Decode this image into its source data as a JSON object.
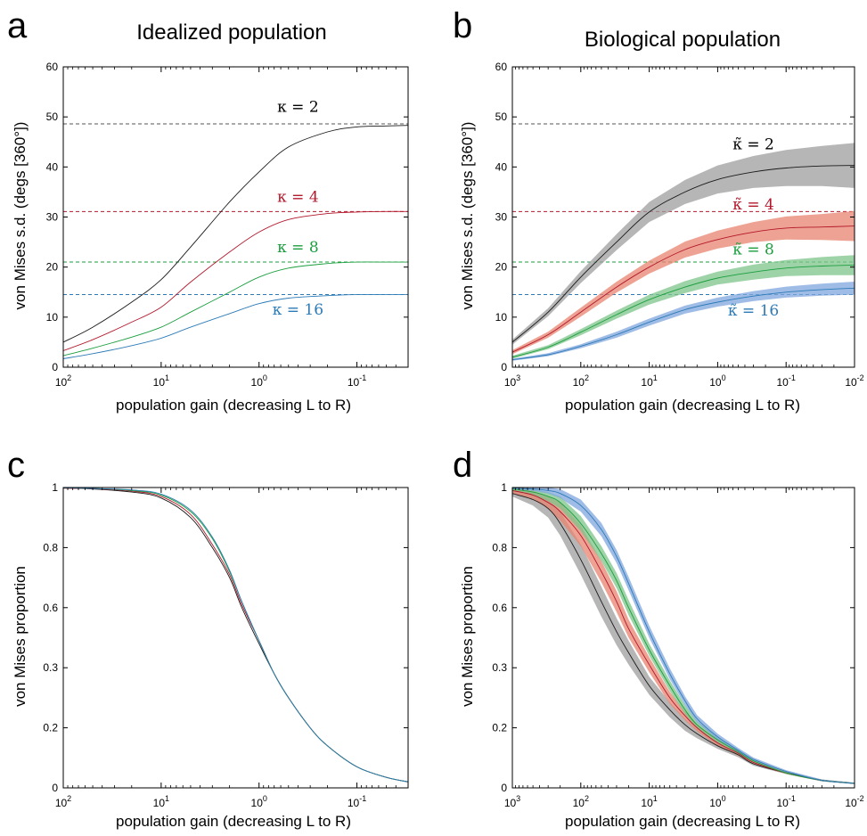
{
  "chart_data": [
    {
      "id": "a",
      "panel_label": "a",
      "title": "Idealized population",
      "type": "line",
      "xlabel": "population gain (decreasing L to R)",
      "ylabel": "von Mises s.d. (degs [360°])",
      "x_scale": "log-reversed",
      "xlim": [
        100,
        0.03
      ],
      "x_ticks": [
        {
          "v": 100,
          "b": "10",
          "e": "2"
        },
        {
          "v": 10,
          "b": "10",
          "e": "1"
        },
        {
          "v": 1,
          "b": "10",
          "e": "0"
        },
        {
          "v": 0.1,
          "b": "10",
          "e": "-1"
        }
      ],
      "ylim": [
        0,
        60
      ],
      "y_ticks": [
        0,
        10,
        20,
        30,
        40,
        50,
        60
      ],
      "grid": false,
      "x": [
        100,
        50,
        20,
        10,
        5,
        2,
        1,
        0.5,
        0.2,
        0.1,
        0.05,
        0.03
      ],
      "series": [
        {
          "color": "#1a1a1a",
          "values": [
            5.0,
            8.0,
            13.0,
            17.5,
            24.0,
            33.0,
            39.0,
            44.0,
            47.0,
            48.0,
            48.2,
            48.3
          ]
        },
        {
          "color": "#b2182b",
          "values": [
            3.3,
            5.5,
            9.0,
            12.0,
            17.0,
            23.0,
            27.0,
            29.5,
            30.7,
            31.0,
            31.1,
            31.1
          ]
        },
        {
          "color": "#1b9e3e",
          "values": [
            2.3,
            3.8,
            6.0,
            8.0,
            11.0,
            15.0,
            18.0,
            19.8,
            20.7,
            21.0,
            21.0,
            21.0
          ]
        },
        {
          "color": "#2c7bb6",
          "values": [
            1.7,
            2.7,
            4.3,
            5.8,
            8.0,
            10.7,
            12.7,
            13.8,
            14.3,
            14.5,
            14.5,
            14.5
          ]
        }
      ],
      "reference_lines": [
        {
          "y": 48.6,
          "color": "#555555"
        },
        {
          "y": 31.1,
          "color": "#b2182b"
        },
        {
          "y": 21.0,
          "color": "#1b9e3e"
        },
        {
          "y": 14.5,
          "color": "#2c7bb6"
        }
      ],
      "annotations": [
        {
          "text": "κ = 2",
          "x": 0.4,
          "y": 51,
          "color": "#000000"
        },
        {
          "text": "κ = 4",
          "x": 0.4,
          "y": 33,
          "color": "#b2182b"
        },
        {
          "text": "κ = 8",
          "x": 0.4,
          "y": 23,
          "color": "#1b9e3e"
        },
        {
          "text": "κ = 16",
          "x": 0.4,
          "y": 10.5,
          "color": "#2c7bb6"
        }
      ]
    },
    {
      "id": "b",
      "panel_label": "b",
      "title": "Biological population",
      "type": "line",
      "xlabel": "population gain (decreasing L to R)",
      "ylabel": "von Mises s.d. (degs [360°])",
      "x_scale": "log-reversed",
      "xlim": [
        1000,
        0.01
      ],
      "x_ticks": [
        {
          "v": 1000,
          "b": "10",
          "e": "3"
        },
        {
          "v": 100,
          "b": "10",
          "e": "2"
        },
        {
          "v": 10,
          "b": "10",
          "e": "1"
        },
        {
          "v": 1,
          "b": "10",
          "e": "0"
        },
        {
          "v": 0.1,
          "b": "10",
          "e": "-1"
        },
        {
          "v": 0.01,
          "b": "10",
          "e": "-2"
        }
      ],
      "ylim": [
        0,
        60
      ],
      "y_ticks": [
        0,
        10,
        20,
        30,
        40,
        50,
        60
      ],
      "grid": false,
      "x": [
        1000,
        300,
        100,
        30,
        10,
        3,
        1,
        0.3,
        0.1,
        0.03,
        0.01
      ],
      "series": [
        {
          "color": "#1a1a1a",
          "band_color": "#9e9e9e",
          "values": [
            5.0,
            11.0,
            18.0,
            25.0,
            31.0,
            35.0,
            37.5,
            39.0,
            39.8,
            40.2,
            40.3
          ],
          "band": [
            0.5,
            0.8,
            1.2,
            1.6,
            2.0,
            2.4,
            2.8,
            3.2,
            3.6,
            4.0,
            4.5
          ]
        },
        {
          "color": "#b2182b",
          "band_color": "#e8836f",
          "values": [
            3.0,
            6.5,
            11.0,
            16.0,
            20.0,
            23.5,
            25.5,
            27.0,
            27.8,
            28.0,
            28.2
          ],
          "band": [
            0.4,
            0.6,
            0.9,
            1.1,
            1.3,
            1.6,
            1.8,
            2.0,
            2.3,
            2.6,
            3.0
          ]
        },
        {
          "color": "#1b9e3e",
          "band_color": "#7cc48a",
          "values": [
            2.0,
            4.0,
            7.0,
            10.5,
            13.5,
            16.0,
            17.8,
            19.0,
            19.8,
            20.2,
            20.4
          ],
          "band": [
            0.3,
            0.4,
            0.6,
            0.8,
            1.0,
            1.2,
            1.3,
            1.5,
            1.6,
            1.8,
            2.0
          ]
        },
        {
          "color": "#2c7bb6",
          "band_color": "#7fa6dd",
          "values": [
            1.5,
            2.5,
            4.2,
            6.5,
            9.0,
            11.5,
            13.0,
            14.2,
            15.0,
            15.5,
            15.8
          ],
          "band": [
            0.2,
            0.3,
            0.4,
            0.6,
            0.7,
            0.8,
            0.9,
            1.0,
            1.1,
            1.2,
            1.3
          ]
        }
      ],
      "reference_lines": [
        {
          "y": 48.6,
          "color": "#555555"
        },
        {
          "y": 31.1,
          "color": "#b2182b"
        },
        {
          "y": 21.0,
          "color": "#1b9e3e"
        },
        {
          "y": 14.5,
          "color": "#2c7bb6"
        }
      ],
      "annotations": [
        {
          "text": "κ̃ = 2",
          "x": 0.3,
          "y": 43.5,
          "color": "#000000"
        },
        {
          "text": "κ̃ = 4",
          "x": 0.3,
          "y": 31.5,
          "color": "#b2182b"
        },
        {
          "text": "κ̃ = 8",
          "x": 0.3,
          "y": 22.5,
          "color": "#1b9e3e"
        },
        {
          "text": "κ̃ = 16",
          "x": 0.3,
          "y": 10.3,
          "color": "#2c7bb6"
        }
      ]
    },
    {
      "id": "c",
      "panel_label": "c",
      "type": "line",
      "xlabel": "population gain (decreasing L to R)",
      "ylabel": "von Mises proportion",
      "x_scale": "log-reversed",
      "xlim": [
        100,
        0.03
      ],
      "x_ticks": [
        {
          "v": 100,
          "b": "10",
          "e": "2"
        },
        {
          "v": 10,
          "b": "10",
          "e": "1"
        },
        {
          "v": 1,
          "b": "10",
          "e": "0"
        },
        {
          "v": 0.1,
          "b": "10",
          "e": "-1"
        }
      ],
      "y_labels": [
        "0",
        "0.2",
        "0.3",
        "0.6",
        "0.8",
        "1"
      ],
      "ylim": [
        0,
        1
      ],
      "grid": false,
      "x": [
        100,
        50,
        20,
        10,
        5,
        3,
        2,
        1.5,
        1,
        0.7,
        0.5,
        0.3,
        0.2,
        0.1,
        0.05,
        0.03
      ],
      "series": [
        {
          "color": "#1a1a1a",
          "values": [
            0.998,
            0.995,
            0.985,
            0.965,
            0.9,
            0.8,
            0.7,
            0.6,
            0.48,
            0.38,
            0.3,
            0.2,
            0.14,
            0.07,
            0.035,
            0.02
          ]
        },
        {
          "color": "#b2182b",
          "values": [
            0.998,
            0.996,
            0.988,
            0.97,
            0.91,
            0.81,
            0.71,
            0.61,
            0.49,
            0.38,
            0.3,
            0.2,
            0.14,
            0.07,
            0.035,
            0.02
          ]
        },
        {
          "color": "#1b9e3e",
          "values": [
            0.999,
            0.997,
            0.99,
            0.975,
            0.92,
            0.83,
            0.72,
            0.62,
            0.49,
            0.38,
            0.3,
            0.2,
            0.14,
            0.07,
            0.035,
            0.02
          ]
        },
        {
          "color": "#2c7bb6",
          "values": [
            0.999,
            0.997,
            0.992,
            0.978,
            0.925,
            0.835,
            0.725,
            0.62,
            0.49,
            0.38,
            0.3,
            0.2,
            0.14,
            0.07,
            0.035,
            0.02
          ]
        }
      ]
    },
    {
      "id": "d",
      "panel_label": "d",
      "type": "line",
      "xlabel": "population gain (decreasing L to R)",
      "ylabel": "von Mises proportion",
      "x_scale": "log-reversed",
      "xlim": [
        1000,
        0.01
      ],
      "x_ticks": [
        {
          "v": 1000,
          "b": "10",
          "e": "3"
        },
        {
          "v": 100,
          "b": "10",
          "e": "2"
        },
        {
          "v": 10,
          "b": "10",
          "e": "1"
        },
        {
          "v": 1,
          "b": "10",
          "e": "0"
        },
        {
          "v": 0.1,
          "b": "10",
          "e": "-1"
        },
        {
          "v": 0.01,
          "b": "10",
          "e": "-2"
        }
      ],
      "y_labels": [
        "0",
        "0.2",
        "0.3",
        "0.6",
        "0.8",
        "1"
      ],
      "ylim": [
        0,
        1
      ],
      "grid": false,
      "x": [
        1000,
        500,
        300,
        200,
        100,
        50,
        30,
        20,
        10,
        5,
        3,
        2,
        1,
        0.5,
        0.3,
        0.1,
        0.03,
        0.01
      ],
      "series": [
        {
          "color": "#1a1a1a",
          "band_color": "#9e9e9e",
          "values": [
            0.98,
            0.96,
            0.93,
            0.88,
            0.76,
            0.62,
            0.52,
            0.45,
            0.34,
            0.26,
            0.21,
            0.18,
            0.14,
            0.11,
            0.08,
            0.05,
            0.025,
            0.015
          ],
          "band": [
            0.01,
            0.02,
            0.03,
            0.04,
            0.05,
            0.05,
            0.045,
            0.04,
            0.03,
            0.025,
            0.02,
            0.015,
            0.01,
            0.008,
            0.006,
            0.004,
            0.003,
            0.002
          ]
        },
        {
          "color": "#b2182b",
          "band_color": "#e8836f",
          "values": [
            0.99,
            0.975,
            0.95,
            0.92,
            0.84,
            0.72,
            0.62,
            0.53,
            0.41,
            0.3,
            0.24,
            0.2,
            0.15,
            0.115,
            0.085,
            0.05,
            0.025,
            0.015
          ],
          "band": [
            0.008,
            0.015,
            0.02,
            0.03,
            0.035,
            0.035,
            0.035,
            0.03,
            0.025,
            0.02,
            0.015,
            0.012,
            0.01,
            0.008,
            0.006,
            0.004,
            0.003,
            0.002
          ]
        },
        {
          "color": "#1b9e3e",
          "band_color": "#7cc48a",
          "values": [
            0.995,
            0.985,
            0.97,
            0.95,
            0.88,
            0.78,
            0.69,
            0.6,
            0.46,
            0.34,
            0.26,
            0.21,
            0.16,
            0.12,
            0.09,
            0.05,
            0.025,
            0.015
          ],
          "band": [
            0.005,
            0.01,
            0.015,
            0.02,
            0.025,
            0.025,
            0.025,
            0.025,
            0.02,
            0.018,
            0.015,
            0.012,
            0.01,
            0.008,
            0.006,
            0.004,
            0.003,
            0.002
          ]
        },
        {
          "color": "#2c7bb6",
          "band_color": "#7fa6dd",
          "values": [
            0.998,
            0.995,
            0.99,
            0.98,
            0.94,
            0.86,
            0.77,
            0.68,
            0.52,
            0.38,
            0.29,
            0.23,
            0.17,
            0.125,
            0.095,
            0.055,
            0.025,
            0.015
          ],
          "band": [
            0.003,
            0.006,
            0.01,
            0.015,
            0.02,
            0.022,
            0.022,
            0.022,
            0.02,
            0.018,
            0.015,
            0.012,
            0.01,
            0.008,
            0.006,
            0.004,
            0.003,
            0.002
          ]
        }
      ]
    }
  ]
}
